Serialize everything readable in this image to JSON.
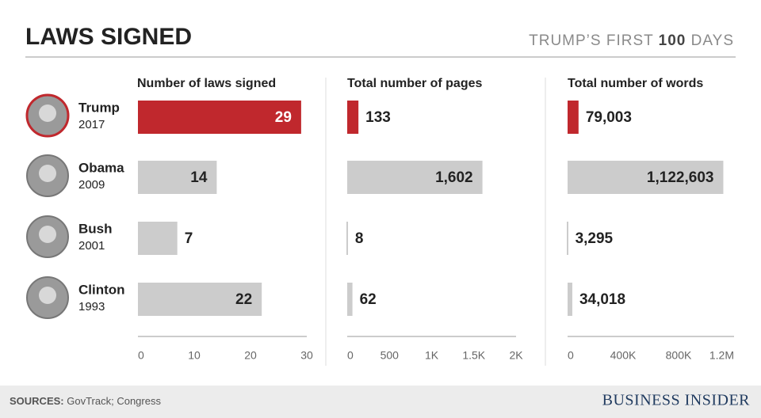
{
  "title": "LAWS SIGNED",
  "subtitle_parts": [
    "TRUMP’S FIRST",
    "100",
    "DAYS"
  ],
  "presidents": {
    "names": [
      "Trump",
      "Obama",
      "Bush",
      "Clinton"
    ],
    "years": [
      "2017",
      "2009",
      "2001",
      "1993"
    ]
  },
  "chart_data": [
    {
      "type": "bar",
      "orientation": "horizontal",
      "title": "Number of laws signed",
      "categories": [
        "Trump",
        "Obama",
        "Bush",
        "Clinton"
      ],
      "values": [
        29,
        14,
        7,
        22
      ],
      "colors": [
        "#c0282d",
        "#cccccc",
        "#cccccc",
        "#cccccc"
      ],
      "xlim": [
        0,
        30
      ],
      "xticks": [
        0,
        10,
        20,
        30
      ]
    },
    {
      "type": "bar",
      "orientation": "horizontal",
      "title": "Total number of pages",
      "categories": [
        "Trump",
        "Obama",
        "Bush",
        "Clinton"
      ],
      "values": [
        133,
        1602,
        8,
        62
      ],
      "value_labels": [
        "133",
        "1,602",
        "8",
        "62"
      ],
      "colors": [
        "#c0282d",
        "#cccccc",
        "#cccccc",
        "#cccccc"
      ],
      "xlim": [
        0,
        2000
      ],
      "xticks": [
        0,
        500,
        {
          "value": 1000,
          "label": "1K"
        },
        {
          "value": 1500,
          "label": "1.5K"
        },
        {
          "value": 2000,
          "label": "2K"
        }
      ]
    },
    {
      "type": "bar",
      "orientation": "horizontal",
      "title": "Total number of words",
      "categories": [
        "Trump",
        "Obama",
        "Bush",
        "Clinton"
      ],
      "values": [
        79003,
        1122603,
        3295,
        34018
      ],
      "value_labels": [
        "79,003",
        "1,122,603",
        "3,295",
        "34,018"
      ],
      "colors": [
        "#c0282d",
        "#cccccc",
        "#cccccc",
        "#cccccc"
      ],
      "xlim": [
        0,
        1200000
      ],
      "xticks": [
        0,
        {
          "value": 400000,
          "label": "400K"
        },
        {
          "value": 800000,
          "label": "800K"
        },
        {
          "value": 1200000,
          "label": "1.2M"
        }
      ]
    }
  ],
  "footer": {
    "sources_label": "SOURCES:",
    "sources": "GovTrack; Congress",
    "brand": "BUSINESS INSIDER"
  }
}
